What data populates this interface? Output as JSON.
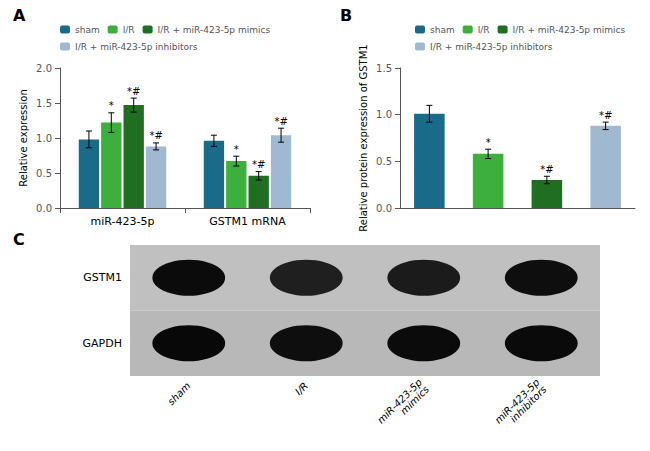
{
  "chart_data": [
    {
      "type": "bar",
      "title": "A",
      "categories": [
        "miR-423-5p",
        "GSTM1 mRNA"
      ],
      "ylabel": "Relative expression",
      "ylim": [
        0,
        2.0
      ],
      "yticks": [
        {
          "value": 0,
          "label": "0.0"
        },
        0.5,
        {
          "value": 1,
          "label": "1.0"
        },
        1.5,
        {
          "value": 2,
          "label": "2.0"
        }
      ],
      "legend": "upper left",
      "series": [
        {
          "name": "sham",
          "color": "#1a6b8a",
          "values": [
            0.98,
            0.96
          ],
          "errors": [
            0.12,
            0.08
          ],
          "annotations": [
            null,
            null
          ]
        },
        {
          "name": "I/R",
          "color": "#3daf3d",
          "values": [
            1.22,
            0.67
          ],
          "errors": [
            0.14,
            0.07
          ],
          "annotations": [
            "*",
            "*"
          ]
        },
        {
          "name": "I/R + miR-423-5p mimics",
          "color": "#1f6e22",
          "values": [
            1.47,
            0.46
          ],
          "errors": [
            0.1,
            0.06
          ],
          "annotations": [
            "*#",
            "*#"
          ]
        },
        {
          "name": "I/R + miR-423-5p inhibitors",
          "color": "#a0b8d0",
          "values": [
            0.88,
            1.04
          ],
          "errors": [
            0.05,
            0.1
          ],
          "annotations": [
            "*#",
            "*#"
          ]
        }
      ]
    },
    {
      "type": "bar",
      "title": "B",
      "categories": [
        "sham",
        "I/R",
        "I/R + miR-423-5p mimics",
        "I/R + miR-423-5p inhibitors"
      ],
      "colors": [
        "#1a6b8a",
        "#3daf3d",
        "#1f6e22",
        "#a0b8d0"
      ],
      "values": [
        1.01,
        0.58,
        0.3,
        0.88
      ],
      "errors": [
        0.09,
        0.05,
        0.04,
        0.04
      ],
      "annotations": [
        null,
        "*",
        "*#",
        "*#"
      ],
      "ylabel": "Relative protein expression of GSTM1",
      "ylim": [
        0,
        1.5
      ],
      "yticks": [
        {
          "value": 0,
          "label": "0.0"
        },
        0.5,
        {
          "value": 1,
          "label": "1.0"
        },
        1.5
      ],
      "legend": "upper right",
      "tick_labels": "y"
    },
    {
      "type": "heatmap",
      "title": "C",
      "categories": [
        "sham",
        "I/R",
        "miR-423-5p\nmimics",
        "miR-423-5p\ninhibitors"
      ],
      "rows": [
        "GSTM1",
        "GAPDH"
      ],
      "cells": [
        [
          0.82,
          0.52,
          0.58,
          0.78
        ],
        [
          0.88,
          0.78,
          0.82,
          0.85
        ]
      ]
    }
  ]
}
